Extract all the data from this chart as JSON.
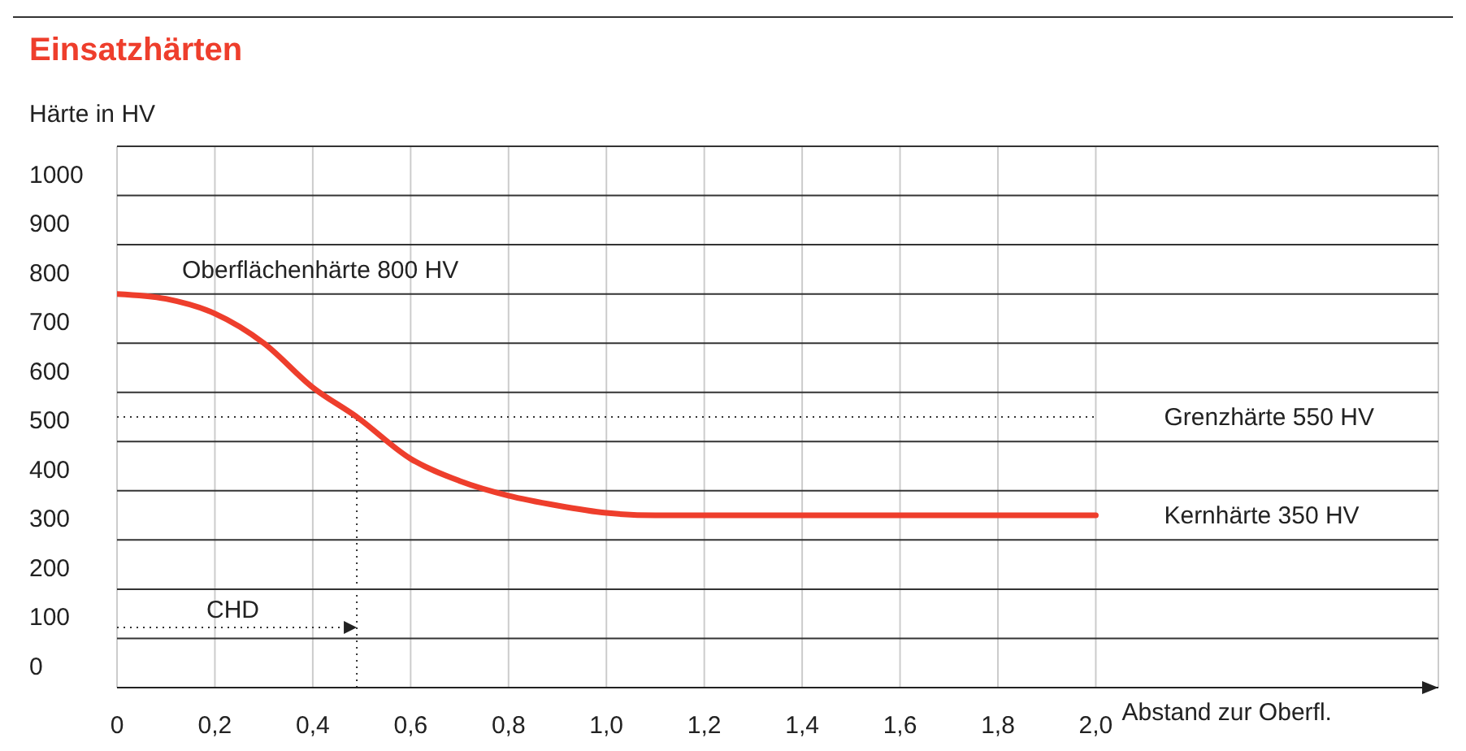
{
  "chart_data": {
    "type": "line",
    "title": "Einsatzhärten",
    "ylabel": "Härte in HV",
    "xlabel": "Abstand zur Oberfl.",
    "x": [
      0,
      0.1,
      0.2,
      0.3,
      0.4,
      0.49,
      0.6,
      0.7,
      0.8,
      0.9,
      1.0,
      1.1,
      1.2,
      1.4,
      1.6,
      1.8,
      2.0
    ],
    "series": [
      {
        "color": "#ee3e2c",
        "values": [
          800,
          790,
          760,
          700,
          610,
          550,
          465,
          420,
          390,
          370,
          355,
          350,
          350,
          350,
          350,
          350,
          350
        ]
      }
    ],
    "xlim": [
      0,
      2.7
    ],
    "xticks": [
      {
        "value": 0,
        "label": "0"
      },
      {
        "value": 0.2,
        "label": "0,2"
      },
      {
        "value": 0.4,
        "label": "0,4"
      },
      {
        "value": 0.6,
        "label": "0,6"
      },
      {
        "value": 0.8,
        "label": "0,8"
      },
      {
        "value": 1.0,
        "label": "1,0"
      },
      {
        "value": 1.2,
        "label": "1,2"
      },
      {
        "value": 1.4,
        "label": "1,4"
      },
      {
        "value": 1.6,
        "label": "1,6"
      },
      {
        "value": 1.8,
        "label": "1,8"
      },
      {
        "value": 2.0,
        "label": "2,0"
      }
    ],
    "ylim": [
      0,
      1100
    ],
    "yticks": [
      0,
      100,
      200,
      300,
      400,
      500,
      600,
      700,
      800,
      900,
      1000,
      {
        "value": 1100,
        "label": null
      }
    ],
    "ref_lines": [
      {
        "axis": "y",
        "value": 550,
        "label": "Grenzhärte 550 HV",
        "line_style": "dotted",
        "color": "#333333"
      },
      {
        "axis": "x",
        "value": 0.49,
        "label": null,
        "line_style": "dotted",
        "color": "#333333"
      }
    ],
    "annotations": [
      "Oberflächenhärte 800 HV",
      {
        "text": "Kernhärte 350 HV",
        "x": 2.0,
        "y": 350
      },
      "CHD"
    ],
    "grid": true,
    "marker": "none",
    "line_style": "solid"
  }
}
